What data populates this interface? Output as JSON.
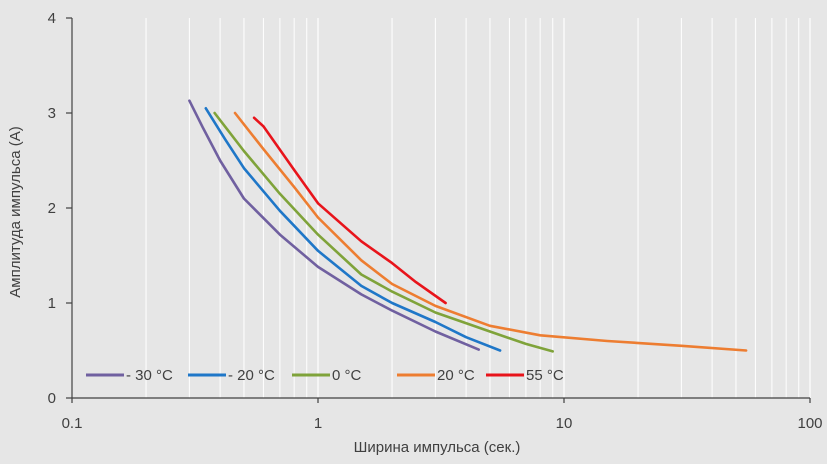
{
  "chart_data": {
    "type": "line",
    "title": "",
    "xlabel": "Ширина импульса (сек.)",
    "ylabel": "Амплитуда импульса (А)",
    "x_scale": "log",
    "xlim": [
      0.1,
      100
    ],
    "ylim": [
      0,
      4
    ],
    "x_ticks": [
      "0.1",
      "1",
      "10",
      "100"
    ],
    "y_ticks": [
      "0",
      "1",
      "2",
      "3",
      "4"
    ],
    "grid": "vertical, log minor",
    "legend_position": "bottom-left, inside plot",
    "series": [
      {
        "name": "- 30 °C",
        "color": "#7060a0",
        "points": [
          [
            0.3,
            3.13
          ],
          [
            0.34,
            2.85
          ],
          [
            0.4,
            2.5
          ],
          [
            0.5,
            2.1
          ],
          [
            0.7,
            1.72
          ],
          [
            1.0,
            1.38
          ],
          [
            1.5,
            1.09
          ],
          [
            2.0,
            0.92
          ],
          [
            3.0,
            0.7
          ],
          [
            4.5,
            0.51
          ]
        ]
      },
      {
        "name": "- 20 °C",
        "color": "#1f77c8",
        "points": [
          [
            0.35,
            3.05
          ],
          [
            0.42,
            2.72
          ],
          [
            0.5,
            2.42
          ],
          [
            0.7,
            1.97
          ],
          [
            1.0,
            1.55
          ],
          [
            1.5,
            1.18
          ],
          [
            2.0,
            1.0
          ],
          [
            3.0,
            0.8
          ],
          [
            4.0,
            0.64
          ],
          [
            5.5,
            0.5
          ]
        ]
      },
      {
        "name": "0 °C",
        "color": "#7fa33a",
        "points": [
          [
            0.38,
            3.0
          ],
          [
            0.5,
            2.6
          ],
          [
            0.7,
            2.15
          ],
          [
            1.0,
            1.72
          ],
          [
            1.5,
            1.3
          ],
          [
            2.0,
            1.12
          ],
          [
            3.0,
            0.9
          ],
          [
            5.0,
            0.7
          ],
          [
            7.0,
            0.57
          ],
          [
            9.0,
            0.49
          ]
        ]
      },
      {
        "name": "20 °C",
        "color": "#ed7d31",
        "points": [
          [
            0.46,
            3.0
          ],
          [
            0.6,
            2.62
          ],
          [
            0.8,
            2.22
          ],
          [
            1.0,
            1.9
          ],
          [
            1.5,
            1.45
          ],
          [
            2.0,
            1.2
          ],
          [
            3.0,
            0.97
          ],
          [
            5.0,
            0.76
          ],
          [
            8.0,
            0.66
          ],
          [
            15.0,
            0.6
          ],
          [
            30.0,
            0.55
          ],
          [
            55.0,
            0.5
          ]
        ]
      },
      {
        "name": "55 °C",
        "color": "#e8141b",
        "points": [
          [
            0.55,
            2.95
          ],
          [
            0.6,
            2.86
          ],
          [
            0.8,
            2.4
          ],
          [
            1.0,
            2.05
          ],
          [
            1.5,
            1.65
          ],
          [
            2.0,
            1.42
          ],
          [
            2.5,
            1.22
          ],
          [
            3.3,
            1.0
          ]
        ]
      }
    ]
  }
}
